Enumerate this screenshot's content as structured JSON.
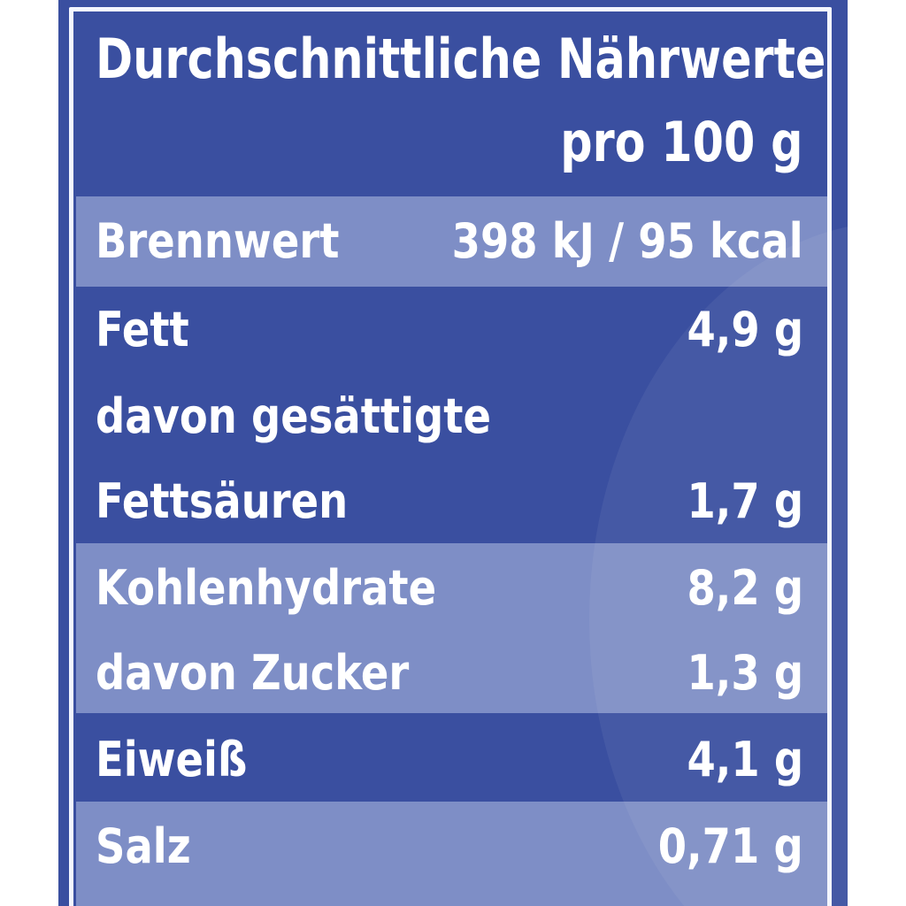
{
  "header": {
    "title": "Durchschnittliche Nährwerte",
    "subtitle": "pro 100 g"
  },
  "rows": [
    {
      "label": "Brennwert",
      "value": "398 kJ / 95 kcal"
    },
    {
      "label": "Fett",
      "value": "4,9 g"
    },
    {
      "label": "davon gesättigte",
      "value": ""
    },
    {
      "label": "Fettsäuren",
      "value": "1,7 g"
    },
    {
      "label": "Kohlenhydrate",
      "value": "8,2 g"
    },
    {
      "label": "davon Zucker",
      "value": "1,3 g"
    },
    {
      "label": "Eiweiß",
      "value": "4,1 g"
    },
    {
      "label": "Salz",
      "value": "0,71 g"
    }
  ],
  "colors": {
    "panel": "#3a4fa0",
    "band": "#a9b5e0",
    "text": "#ffffff"
  }
}
